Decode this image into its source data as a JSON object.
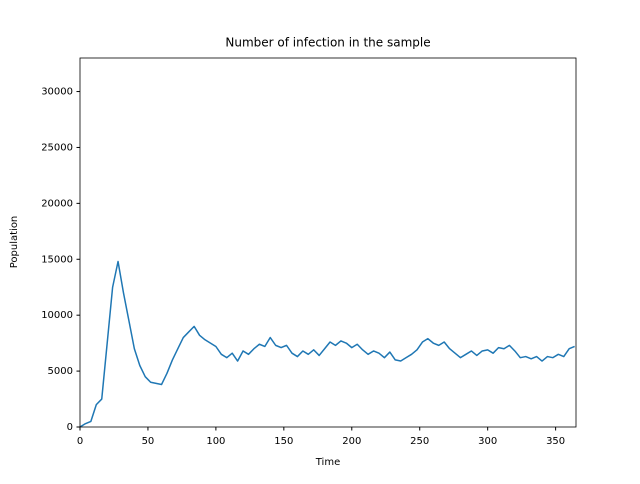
{
  "chart_data": {
    "type": "line",
    "title": "Number of infection in the sample",
    "xlabel": "Time",
    "ylabel": "Population",
    "x": [
      0,
      4,
      8,
      12,
      16,
      20,
      24,
      28,
      32,
      36,
      40,
      44,
      48,
      52,
      56,
      60,
      64,
      68,
      72,
      76,
      80,
      84,
      88,
      92,
      96,
      100,
      104,
      108,
      112,
      116,
      120,
      124,
      128,
      132,
      136,
      140,
      144,
      148,
      152,
      156,
      160,
      164,
      168,
      172,
      176,
      180,
      184,
      188,
      192,
      196,
      200,
      204,
      208,
      212,
      216,
      220,
      224,
      228,
      232,
      236,
      240,
      244,
      248,
      252,
      256,
      260,
      264,
      268,
      272,
      276,
      280,
      284,
      288,
      292,
      296,
      300,
      304,
      308,
      312,
      316,
      320,
      324,
      328,
      332,
      336,
      340,
      344,
      348,
      352,
      356,
      360,
      364
    ],
    "series": [
      {
        "color": "#1f77b4",
        "values": [
          0,
          300,
          500,
          2000,
          2500,
          7500,
          12500,
          14800,
          12000,
          9500,
          7000,
          5500,
          4500,
          4000,
          3900,
          3800,
          4800,
          6000,
          7000,
          8000,
          8500,
          9000,
          8200,
          7800,
          7500,
          7200,
          6500,
          6200,
          6600,
          5900,
          6800,
          6500,
          7000,
          7400,
          7200,
          8000,
          7300,
          7100,
          7300,
          6600,
          6300,
          6800,
          6500,
          6900,
          6400,
          7000,
          7600,
          7300,
          7700,
          7500,
          7100,
          7400,
          6900,
          6500,
          6800,
          6600,
          6200,
          6700,
          6000,
          5900,
          6200,
          6500,
          6900,
          7600,
          7900,
          7500,
          7300,
          7600,
          7000,
          6600,
          6200,
          6500,
          6800,
          6400,
          6800,
          6900,
          6600,
          7100,
          7000,
          7300,
          6800,
          6200,
          6300,
          6100,
          6300,
          5900,
          6300,
          6200,
          6500,
          6300,
          7000,
          7200
        ]
      }
    ],
    "xlim": [
      0,
      365
    ],
    "ylim": [
      0,
      33000
    ],
    "xticks": [
      0,
      50,
      100,
      150,
      200,
      250,
      300,
      350
    ],
    "yticks": [
      0,
      5000,
      10000,
      15000,
      20000,
      25000,
      30000
    ],
    "grid": false
  }
}
